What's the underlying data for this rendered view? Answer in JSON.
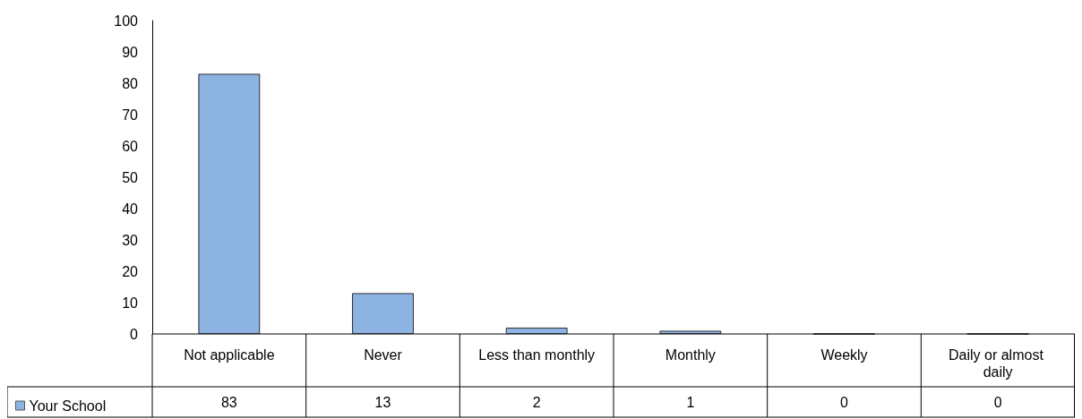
{
  "chart_data": {
    "type": "bar",
    "categories": [
      "Not applicable",
      "Never",
      "Less than monthly",
      "Monthly",
      "Weekly",
      "Daily or almost daily"
    ],
    "series": [
      {
        "name": "Your School",
        "color": "#8db3e2",
        "values": [
          83,
          13,
          2,
          1,
          0,
          0
        ]
      }
    ],
    "ylim": [
      0,
      100
    ],
    "yticks": [
      0,
      10,
      20,
      30,
      40,
      50,
      60,
      70,
      80,
      90,
      100
    ],
    "grid": false,
    "legend": "bottom left",
    "data_labels": true
  }
}
